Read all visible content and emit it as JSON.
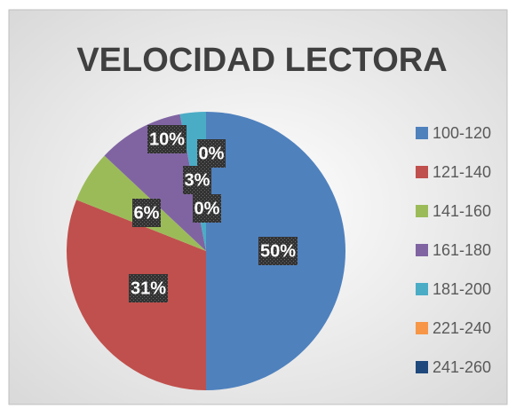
{
  "chart_data": {
    "type": "pie",
    "title": "VELOCIDAD LECTORA",
    "categories": [
      "100-120",
      "121-140",
      "141-160",
      "161-180",
      "181-200",
      "221-240",
      "241-260"
    ],
    "values": [
      50,
      31,
      6,
      10,
      3,
      0,
      0
    ],
    "value_labels": [
      "50%",
      "31%",
      "6%",
      "10%",
      "3%",
      "0%",
      "0%"
    ],
    "colors": [
      "#4f81bd",
      "#c0504d",
      "#9bbb59",
      "#8064a2",
      "#4bacc6",
      "#f79646",
      "#1f497d"
    ],
    "legend": "right"
  }
}
